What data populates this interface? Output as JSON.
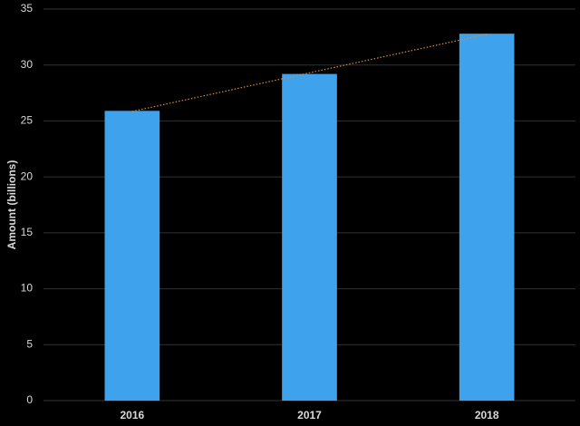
{
  "chart_data": {
    "type": "bar",
    "y_label": "Amount (billions)",
    "categories": [
      "2016",
      "2017",
      "2018"
    ],
    "values": [
      25.9,
      29.2,
      32.8
    ],
    "color": "#3ea3ec",
    "ylim": [
      0,
      35
    ],
    "yticks": [
      0,
      5,
      10,
      15,
      20,
      25,
      30,
      35
    ],
    "grid": true,
    "trendline": true,
    "trendline_color": "#e08a2c"
  }
}
